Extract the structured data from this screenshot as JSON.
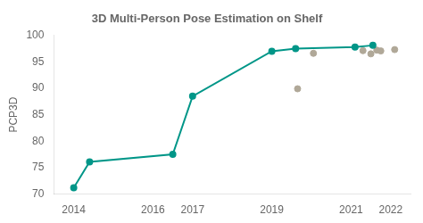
{
  "chart_data": {
    "type": "line",
    "title": "3D Multi-Person Pose Estimation on Shelf",
    "ylabel": "PCP3D",
    "series": [
      {
        "type": "line",
        "color": "#009688",
        "marker": "circle",
        "x": [
          2014.0,
          2014.4,
          2016.5,
          2017.0,
          2019.0,
          2019.6,
          2021.1,
          2021.55
        ],
        "values": [
          71.2,
          76.1,
          77.5,
          88.5,
          97.0,
          97.5,
          97.8,
          98.1
        ]
      },
      {
        "type": "scatter",
        "color": "#b0a898",
        "marker": "circle",
        "x": [
          2019.65,
          2020.05,
          2021.3,
          2021.5,
          2021.65,
          2021.75,
          2022.1
        ],
        "values": [
          89.9,
          96.6,
          97.1,
          96.5,
          97.2,
          97.05,
          97.3
        ]
      }
    ],
    "xlim": [
      2013.5,
      2022.5
    ],
    "ylim": [
      70,
      100
    ],
    "xticks": [
      2014,
      2016,
      2017,
      2019,
      2021,
      2022
    ],
    "yticks": [
      70,
      75,
      80,
      85,
      90,
      95,
      100
    ],
    "grid": false
  }
}
